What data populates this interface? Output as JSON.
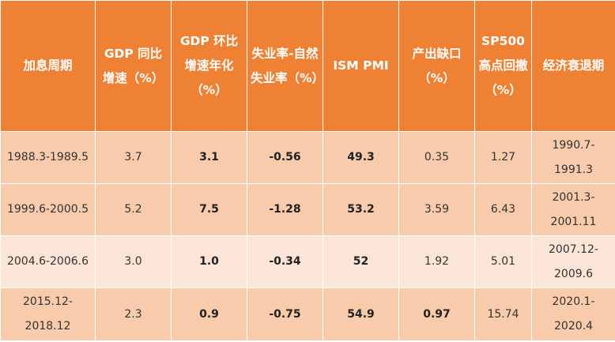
{
  "table": {
    "headers": [
      "加息周期",
      "GDP 同比增速（%）",
      "GDP 环比增速年化（%）",
      "失业率-自然失业率（%）",
      "ISM PMI",
      "产出缺口（%）",
      "SP500高点回撤（%）",
      "经济衰退期"
    ],
    "rows": [
      [
        "1988.3-1989.5",
        "3.7",
        "3.1",
        "-0.56",
        "49.3",
        "0.35",
        "1.27",
        "1990.7-1991.3"
      ],
      [
        "1999.6-2000.5",
        "5.2",
        "7.5",
        "-1.28",
        "53.2",
        "3.59",
        "6.43",
        "2001.3-2001.11"
      ],
      [
        "2004.6-2006.6",
        "3.0",
        "1.0",
        "-0.34",
        "52",
        "1.92",
        "5.01",
        "2007.12-2009.6"
      ],
      [
        "2015.12-2018.12",
        "2.3",
        "0.9",
        "-0.75",
        "54.9",
        "0.97",
        "15.74",
        "2020.1-2020.4"
      ]
    ]
  },
  "colors": {
    "header_bg": "#ee8133",
    "header_text": "#ffffff",
    "row_band_dark": "#f7cbab",
    "row_band_light": "#fbe5d6"
  }
}
